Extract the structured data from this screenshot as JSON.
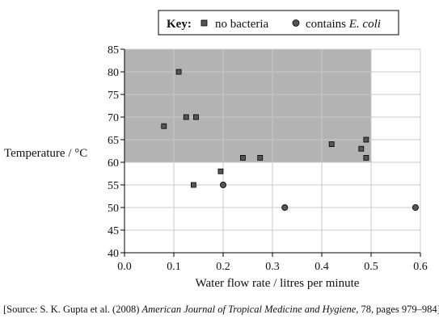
{
  "key": {
    "title": "Key:",
    "entry1": "no bacteria",
    "entry2_prefix": "contains ",
    "entry2_italic": "E. coli"
  },
  "source": {
    "prefix": "[Source: S. K. Gupta et al. (2008) ",
    "journal": "American Journal of Tropical Medicine and Hygiene",
    "suffix": ", 78, pages 979–984]"
  },
  "colors": {
    "shaded_region": "#b3b3b3",
    "marker_fill": "#555555",
    "grid": "#c8c8c8",
    "axis": "#000000"
  },
  "chart_data": {
    "type": "scatter",
    "xlabel": "Water flow rate / litres per minute",
    "ylabel": "Temperature / °C",
    "xlim": [
      0.0,
      0.6
    ],
    "ylim": [
      40,
      85
    ],
    "xticks": [
      "0.0",
      "0.1",
      "0.2",
      "0.3",
      "0.4",
      "0.5",
      "0.6"
    ],
    "yticks": [
      "40",
      "45",
      "50",
      "55",
      "60",
      "65",
      "70",
      "75",
      "80",
      "85"
    ],
    "xtick_values": [
      0.0,
      0.1,
      0.2,
      0.3,
      0.4,
      0.5,
      0.6
    ],
    "ytick_values": [
      40,
      45,
      50,
      55,
      60,
      65,
      70,
      75,
      80,
      85
    ],
    "grid": true,
    "legend_position": "top",
    "shaded_region": {
      "x": [
        0.0,
        0.5
      ],
      "y": [
        60,
        85
      ]
    },
    "series": [
      {
        "name": "no bacteria",
        "marker": "square",
        "points": [
          [
            0.11,
            80
          ],
          [
            0.08,
            68
          ],
          [
            0.125,
            70
          ],
          [
            0.145,
            70
          ],
          [
            0.195,
            58
          ],
          [
            0.14,
            55
          ],
          [
            0.24,
            61
          ],
          [
            0.275,
            61
          ],
          [
            0.42,
            64
          ],
          [
            0.49,
            65
          ],
          [
            0.48,
            63
          ],
          [
            0.49,
            61
          ]
        ]
      },
      {
        "name": "contains E. coli",
        "marker": "circle",
        "points": [
          [
            0.2,
            55
          ],
          [
            0.325,
            50
          ],
          [
            0.59,
            50
          ]
        ]
      }
    ]
  }
}
